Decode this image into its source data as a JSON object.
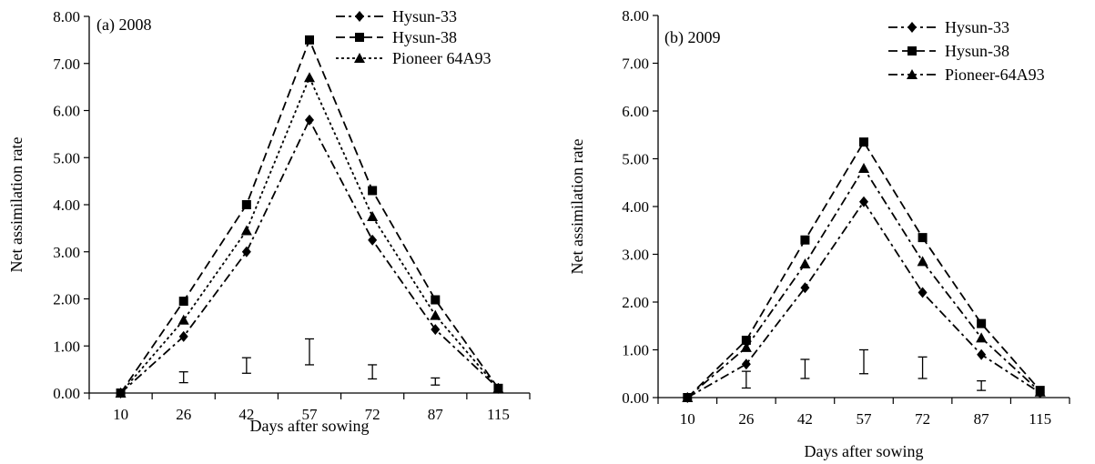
{
  "chart_data": [
    {
      "type": "line",
      "title": "(a) 2008",
      "xlabel": "Days after sowing",
      "ylabel": "Net assimilation rate",
      "categories": [
        "10",
        "26",
        "42",
        "57",
        "72",
        "87",
        "115"
      ],
      "ylim": [
        0,
        8
      ],
      "yticks": [
        "0.00",
        "1.00",
        "2.00",
        "3.00",
        "4.00",
        "5.00",
        "6.00",
        "7.00",
        "8.00"
      ],
      "legend_position": "top-right",
      "series": [
        {
          "name": "Hysun-33",
          "marker": "diamond",
          "dash": "dash-dot",
          "values": [
            0.0,
            1.2,
            3.0,
            5.8,
            3.25,
            1.35,
            0.1
          ]
        },
        {
          "name": "Hysun-38",
          "marker": "square",
          "dash": "dash",
          "values": [
            0.0,
            1.95,
            4.0,
            7.5,
            4.3,
            1.98,
            0.1
          ]
        },
        {
          "name": "Pioneer 64A93",
          "marker": "triangle",
          "dash": "dot",
          "values": [
            0.0,
            1.55,
            3.45,
            6.7,
            3.75,
            1.65,
            0.1
          ]
        }
      ],
      "error_bars": [
        {
          "x": "26",
          "low": 0.22,
          "high": 0.45
        },
        {
          "x": "42",
          "low": 0.42,
          "high": 0.75
        },
        {
          "x": "57",
          "low": 0.6,
          "high": 1.15
        },
        {
          "x": "72",
          "low": 0.3,
          "high": 0.6
        },
        {
          "x": "87",
          "low": 0.17,
          "high": 0.32
        }
      ]
    },
    {
      "type": "line",
      "title": "(b) 2009",
      "xlabel": "Days after sowing",
      "ylabel": "Net assimilation rate",
      "categories": [
        "10",
        "26",
        "42",
        "57",
        "72",
        "87",
        "115"
      ],
      "ylim": [
        0,
        8
      ],
      "yticks": [
        "0.00",
        "1.00",
        "2.00",
        "3.00",
        "4.00",
        "5.00",
        "6.00",
        "7.00",
        "8.00"
      ],
      "legend_position": "top-right",
      "series": [
        {
          "name": "Hysun-33",
          "marker": "diamond",
          "dash": "dash-dot",
          "values": [
            0.0,
            0.7,
            2.3,
            4.1,
            2.2,
            0.9,
            0.1
          ]
        },
        {
          "name": "Hysun-38",
          "marker": "square",
          "dash": "dash",
          "values": [
            0.0,
            1.2,
            3.3,
            5.35,
            3.35,
            1.55,
            0.15
          ]
        },
        {
          "name": "Pioneer-64A93",
          "marker": "triangle",
          "dash": "dash-dot",
          "values": [
            0.0,
            1.05,
            2.8,
            4.8,
            2.85,
            1.25,
            0.12
          ]
        }
      ],
      "error_bars": [
        {
          "x": "26",
          "low": 0.2,
          "high": 0.55
        },
        {
          "x": "42",
          "low": 0.4,
          "high": 0.8
        },
        {
          "x": "57",
          "low": 0.5,
          "high": 1.0
        },
        {
          "x": "72",
          "low": 0.4,
          "high": 0.85
        },
        {
          "x": "87",
          "low": 0.15,
          "high": 0.35
        }
      ]
    }
  ]
}
